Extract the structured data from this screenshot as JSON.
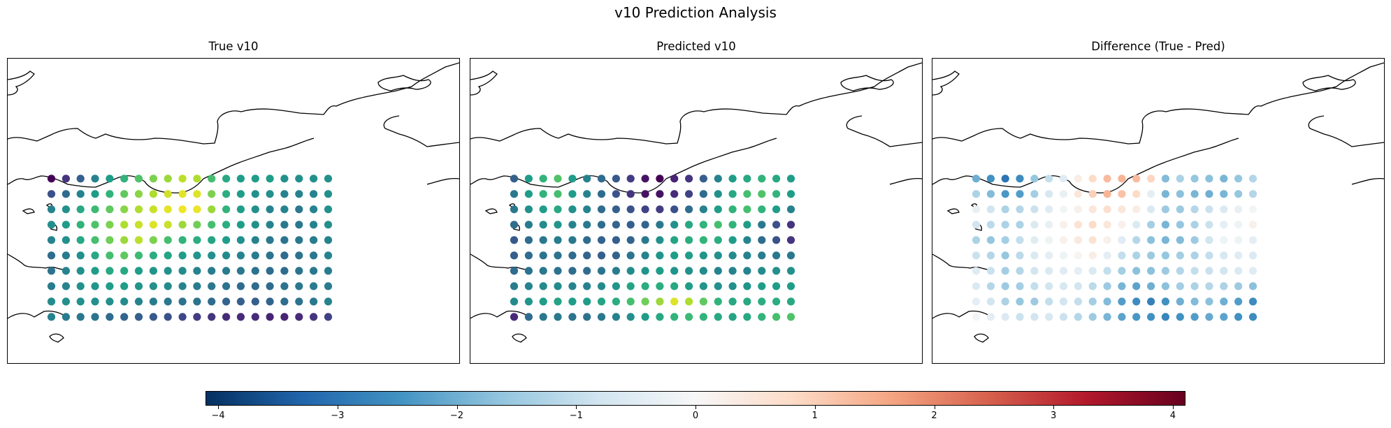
{
  "title": "v10 Prediction Analysis",
  "panels": [
    {
      "key": "true",
      "title": "True v10"
    },
    {
      "key": "pred",
      "title": "Predicted v10"
    },
    {
      "key": "diff",
      "title": "Difference (True - Pred)"
    }
  ],
  "colorbar": {
    "cmap": "RdBu_r",
    "range": [
      -4.1,
      4.1
    ],
    "ticks": [
      -4,
      -3,
      -2,
      -1,
      0,
      1,
      2,
      3,
      4
    ],
    "tick_labels": [
      "−4",
      "−3",
      "−2",
      "−1",
      "0",
      "1",
      "2",
      "3",
      "4"
    ]
  },
  "chart_data": [
    {
      "type": "scatter",
      "title": "True v10",
      "cmap": "viridis",
      "lon": [
        -5.5,
        -5.0,
        -4.5,
        -4.0,
        -3.5,
        -3.0,
        -2.5,
        -2.0,
        -1.5,
        -1.0,
        -0.5,
        0.0,
        0.5,
        1.0,
        1.5,
        2.0,
        2.5,
        3.0,
        3.5,
        4.0
      ],
      "lat": [
        51.5,
        51.0,
        50.5,
        50.0,
        49.5,
        49.0,
        48.5,
        48.0,
        47.5,
        47.0
      ],
      "values": [
        [
          0.0,
          0.15,
          0.3,
          0.45,
          0.55,
          0.65,
          0.72,
          0.8,
          0.85,
          0.9,
          0.88,
          0.7,
          0.6,
          0.55,
          0.55,
          0.55,
          0.5,
          0.5,
          0.5,
          0.5
        ],
        [
          0.25,
          0.35,
          0.45,
          0.55,
          0.65,
          0.75,
          0.82,
          0.88,
          0.93,
          0.96,
          0.95,
          0.8,
          0.62,
          0.55,
          0.5,
          0.5,
          0.45,
          0.45,
          0.45,
          0.5
        ],
        [
          0.45,
          0.5,
          0.6,
          0.68,
          0.75,
          0.82,
          0.88,
          0.92,
          0.96,
          0.98,
          0.97,
          0.85,
          0.65,
          0.55,
          0.5,
          0.45,
          0.45,
          0.4,
          0.45,
          0.5
        ],
        [
          0.5,
          0.55,
          0.65,
          0.72,
          0.8,
          0.88,
          0.92,
          0.95,
          0.92,
          0.85,
          0.78,
          0.7,
          0.62,
          0.55,
          0.5,
          0.45,
          0.4,
          0.4,
          0.45,
          0.5
        ],
        [
          0.45,
          0.5,
          0.6,
          0.7,
          0.78,
          0.85,
          0.9,
          0.8,
          0.7,
          0.65,
          0.62,
          0.58,
          0.55,
          0.5,
          0.45,
          0.4,
          0.38,
          0.4,
          0.42,
          0.45
        ],
        [
          0.35,
          0.42,
          0.5,
          0.6,
          0.7,
          0.75,
          0.68,
          0.62,
          0.58,
          0.55,
          0.52,
          0.5,
          0.48,
          0.45,
          0.42,
          0.38,
          0.35,
          0.38,
          0.4,
          0.45
        ],
        [
          0.38,
          0.45,
          0.5,
          0.55,
          0.6,
          0.6,
          0.55,
          0.52,
          0.5,
          0.48,
          0.45,
          0.42,
          0.42,
          0.4,
          0.38,
          0.35,
          0.35,
          0.38,
          0.4,
          0.42
        ],
        [
          0.42,
          0.45,
          0.5,
          0.52,
          0.55,
          0.55,
          0.52,
          0.5,
          0.48,
          0.45,
          0.42,
          0.4,
          0.38,
          0.35,
          0.35,
          0.35,
          0.38,
          0.4,
          0.42,
          0.42
        ],
        [
          0.48,
          0.5,
          0.5,
          0.5,
          0.5,
          0.48,
          0.45,
          0.42,
          0.4,
          0.38,
          0.38,
          0.35,
          0.32,
          0.3,
          0.3,
          0.32,
          0.35,
          0.38,
          0.4,
          0.45
        ],
        [
          0.45,
          0.42,
          0.4,
          0.38,
          0.35,
          0.32,
          0.3,
          0.28,
          0.25,
          0.22,
          0.18,
          0.15,
          0.12,
          0.12,
          0.12,
          0.1,
          0.1,
          0.12,
          0.15,
          0.2
        ]
      ]
    },
    {
      "type": "scatter",
      "title": "Predicted v10",
      "cmap": "viridis",
      "lon": [
        -5.5,
        -5.0,
        -4.5,
        -4.0,
        -3.5,
        -3.0,
        -2.5,
        -2.0,
        -1.5,
        -1.0,
        -0.5,
        0.0,
        0.5,
        1.0,
        1.5,
        2.0,
        2.5,
        3.0,
        3.5,
        4.0
      ],
      "lat": [
        51.5,
        51.0,
        50.5,
        50.0,
        49.5,
        49.0,
        48.5,
        48.0,
        47.5,
        47.0
      ],
      "values": [
        [
          0.3,
          0.55,
          0.65,
          0.72,
          0.55,
          0.45,
          0.35,
          0.28,
          0.18,
          0.05,
          0.0,
          0.1,
          0.15,
          0.3,
          0.45,
          0.55,
          0.6,
          0.65,
          0.6,
          0.55
        ],
        [
          0.4,
          0.55,
          0.65,
          0.7,
          0.55,
          0.45,
          0.35,
          0.25,
          0.15,
          0.05,
          0.05,
          0.12,
          0.2,
          0.35,
          0.5,
          0.6,
          0.7,
          0.72,
          0.65,
          0.55
        ],
        [
          0.4,
          0.5,
          0.55,
          0.6,
          0.5,
          0.45,
          0.35,
          0.3,
          0.25,
          0.2,
          0.18,
          0.25,
          0.35,
          0.45,
          0.55,
          0.65,
          0.7,
          0.65,
          0.55,
          0.45
        ],
        [
          0.35,
          0.42,
          0.48,
          0.52,
          0.45,
          0.4,
          0.35,
          0.32,
          0.3,
          0.32,
          0.4,
          0.5,
          0.6,
          0.65,
          0.7,
          0.65,
          0.55,
          0.4,
          0.25,
          0.15
        ],
        [
          0.28,
          0.35,
          0.4,
          0.42,
          0.4,
          0.35,
          0.32,
          0.3,
          0.32,
          0.4,
          0.5,
          0.58,
          0.62,
          0.65,
          0.62,
          0.55,
          0.45,
          0.35,
          0.25,
          0.15
        ],
        [
          0.3,
          0.35,
          0.38,
          0.38,
          0.35,
          0.32,
          0.3,
          0.32,
          0.38,
          0.45,
          0.52,
          0.55,
          0.55,
          0.52,
          0.5,
          0.48,
          0.45,
          0.42,
          0.4,
          0.4
        ],
        [
          0.35,
          0.38,
          0.4,
          0.38,
          0.35,
          0.35,
          0.38,
          0.42,
          0.48,
          0.52,
          0.55,
          0.52,
          0.5,
          0.48,
          0.45,
          0.45,
          0.45,
          0.48,
          0.5,
          0.5
        ],
        [
          0.42,
          0.45,
          0.48,
          0.48,
          0.45,
          0.45,
          0.48,
          0.52,
          0.58,
          0.62,
          0.62,
          0.6,
          0.55,
          0.52,
          0.5,
          0.5,
          0.52,
          0.55,
          0.55,
          0.55
        ],
        [
          0.48,
          0.52,
          0.55,
          0.58,
          0.55,
          0.55,
          0.58,
          0.62,
          0.7,
          0.78,
          0.85,
          0.95,
          0.88,
          0.75,
          0.65,
          0.6,
          0.6,
          0.62,
          0.62,
          0.6
        ],
        [
          0.12,
          0.35,
          0.4,
          0.4,
          0.38,
          0.38,
          0.4,
          0.45,
          0.5,
          0.55,
          0.6,
          0.65,
          0.68,
          0.65,
          0.6,
          0.58,
          0.6,
          0.65,
          0.7,
          0.72
        ]
      ]
    },
    {
      "type": "scatter",
      "title": "Difference (True - Pred)",
      "cmap": "RdBu_r",
      "vrange": [
        -4.1,
        4.1
      ],
      "lon": [
        -5.5,
        -5.0,
        -4.5,
        -4.0,
        -3.5,
        -3.0,
        -2.5,
        -2.0,
        -1.5,
        -1.0,
        -0.5,
        0.0,
        0.5,
        1.0,
        1.5,
        2.0,
        2.5,
        3.0,
        3.5,
        4.0
      ],
      "lat": [
        51.5,
        51.0,
        50.5,
        50.0,
        49.5,
        49.0,
        48.5,
        48.0,
        47.5,
        47.0
      ],
      "values": [
        [
          -2.0,
          -2.5,
          -3.0,
          -2.6,
          -1.6,
          -1.0,
          -0.5,
          0.3,
          0.8,
          1.3,
          1.4,
          1.3,
          0.9,
          -1.8,
          -1.3,
          -1.6,
          -1.7,
          -1.9,
          -1.6,
          -1.2
        ],
        [
          -1.3,
          -1.8,
          -2.4,
          -2.3,
          -1.4,
          -0.7,
          -0.3,
          0.5,
          1.0,
          1.4,
          1.2,
          0.8,
          -0.4,
          -1.9,
          -1.7,
          -1.9,
          -2.0,
          -1.9,
          -1.6,
          -1.2
        ],
        [
          -0.3,
          -0.8,
          -1.3,
          -1.2,
          -0.9,
          -0.5,
          -0.1,
          0.2,
          0.5,
          0.7,
          0.5,
          0.3,
          -0.6,
          -1.5,
          -1.5,
          -1.2,
          -0.9,
          -0.6,
          -0.3,
          -0.1
        ],
        [
          -0.8,
          -1.1,
          -1.3,
          -1.3,
          -0.6,
          -0.3,
          0.2,
          0.6,
          0.8,
          0.5,
          0.2,
          -0.6,
          -1.4,
          -1.9,
          -1.6,
          -1.3,
          -0.9,
          -0.4,
          -0.2,
          0.2
        ],
        [
          -1.3,
          -1.6,
          -1.4,
          -1.0,
          -0.5,
          -0.2,
          0.2,
          0.4,
          0.6,
          0.2,
          -0.5,
          -1.2,
          -1.7,
          -1.9,
          -1.8,
          -1.5,
          -0.8,
          -0.2,
          -0.2,
          -0.4
        ],
        [
          -0.9,
          -1.2,
          -1.6,
          -1.1,
          -0.6,
          -0.4,
          -0.2,
          0.1,
          0.3,
          -0.4,
          -1.0,
          -1.3,
          -1.5,
          -1.6,
          -1.4,
          -1.3,
          -1.0,
          -0.7,
          -0.5,
          -0.6
        ],
        [
          -0.5,
          -0.9,
          -1.4,
          -1.2,
          -0.8,
          -0.6,
          -0.5,
          -0.4,
          -0.6,
          -1.0,
          -1.4,
          -1.7,
          -1.7,
          -1.5,
          -1.2,
          -1.0,
          -0.9,
          -0.8,
          -0.6,
          -0.5
        ],
        [
          -0.6,
          -1.2,
          -1.5,
          -1.4,
          -1.0,
          -0.8,
          -0.7,
          -0.8,
          -1.1,
          -1.5,
          -1.9,
          -2.2,
          -2.0,
          -1.7,
          -1.4,
          -1.3,
          -1.2,
          -1.3,
          -1.5,
          -1.7
        ],
        [
          -0.4,
          -0.8,
          -1.3,
          -1.6,
          -1.5,
          -1.0,
          -0.8,
          -1.0,
          -1.4,
          -1.8,
          -2.3,
          -2.6,
          -2.8,
          -2.5,
          -2.0,
          -1.8,
          -1.7,
          -2.0,
          -2.3,
          -2.6
        ],
        [
          -0.1,
          -0.4,
          -0.6,
          -0.9,
          -0.8,
          -0.7,
          -0.9,
          -1.2,
          -1.5,
          -1.9,
          -2.2,
          -2.4,
          -2.5,
          -2.7,
          -2.5,
          -2.3,
          -2.1,
          -2.2,
          -2.5,
          -2.6
        ]
      ]
    }
  ]
}
